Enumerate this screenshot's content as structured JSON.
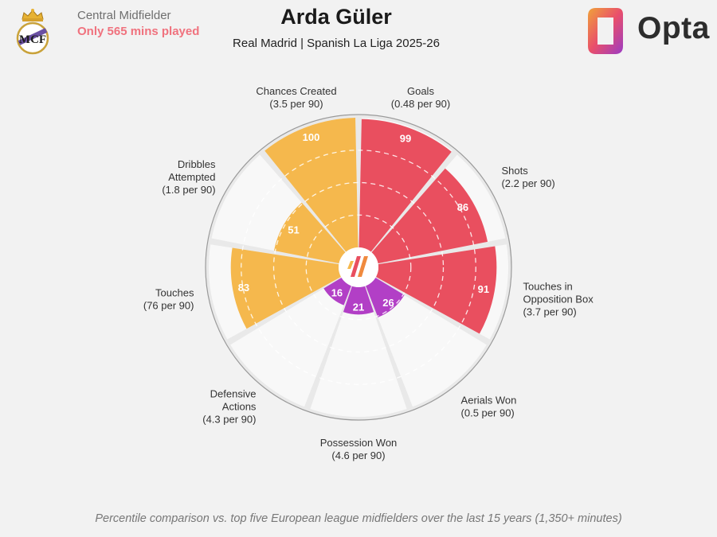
{
  "header": {
    "position": "Central Midfielder",
    "minutes_note": "Only 565 mins played",
    "player_name": "Arda Güler",
    "subtitle": "Real Madrid | Spanish La Liga 2025-26",
    "brand": "Opta"
  },
  "footnote": "Percentile comparison vs. top five European league midfielders over the last 15 years (1,350+ minutes)",
  "colors": {
    "attacking": "#e94f5f",
    "possession": "#f5b84d",
    "defending": "#b23fc6",
    "background": "#f2f2f2",
    "empty_sector": "#f8f8f8"
  },
  "chart_data": {
    "type": "radar",
    "scale_max": 100,
    "grid": "dashed rings",
    "metrics": [
      {
        "label": "Goals",
        "per90": "(0.48 per 90)",
        "percentile": 99,
        "group": "attacking"
      },
      {
        "label": "Shots",
        "per90": "(2.2 per 90)",
        "percentile": 86,
        "group": "attacking"
      },
      {
        "label": "Touches in Opposition Box",
        "label_lines": [
          "Touches in",
          "Opposition Box"
        ],
        "per90": "(3.7 per 90)",
        "percentile": 91,
        "group": "attacking"
      },
      {
        "label": "Aerials Won",
        "per90": "(0.5 per 90)",
        "percentile": 26,
        "group": "defending"
      },
      {
        "label": "Possession Won",
        "per90": "(4.6 per 90)",
        "percentile": 21,
        "group": "defending"
      },
      {
        "label": "Defensive Actions",
        "label_lines": [
          "Defensive",
          "Actions"
        ],
        "per90": "(4.3 per 90)",
        "percentile": 16,
        "group": "defending"
      },
      {
        "label": "Touches",
        "per90": "(76 per 90)",
        "percentile": 83,
        "group": "possession"
      },
      {
        "label": "Dribbles Attempted",
        "label_lines": [
          "Dribbles",
          "Attempted"
        ],
        "per90": "(1.8 per 90)",
        "percentile": 51,
        "group": "possession"
      },
      {
        "label": "Chances Created",
        "per90": "(3.5 per 90)",
        "percentile": 100,
        "group": "possession"
      }
    ]
  }
}
